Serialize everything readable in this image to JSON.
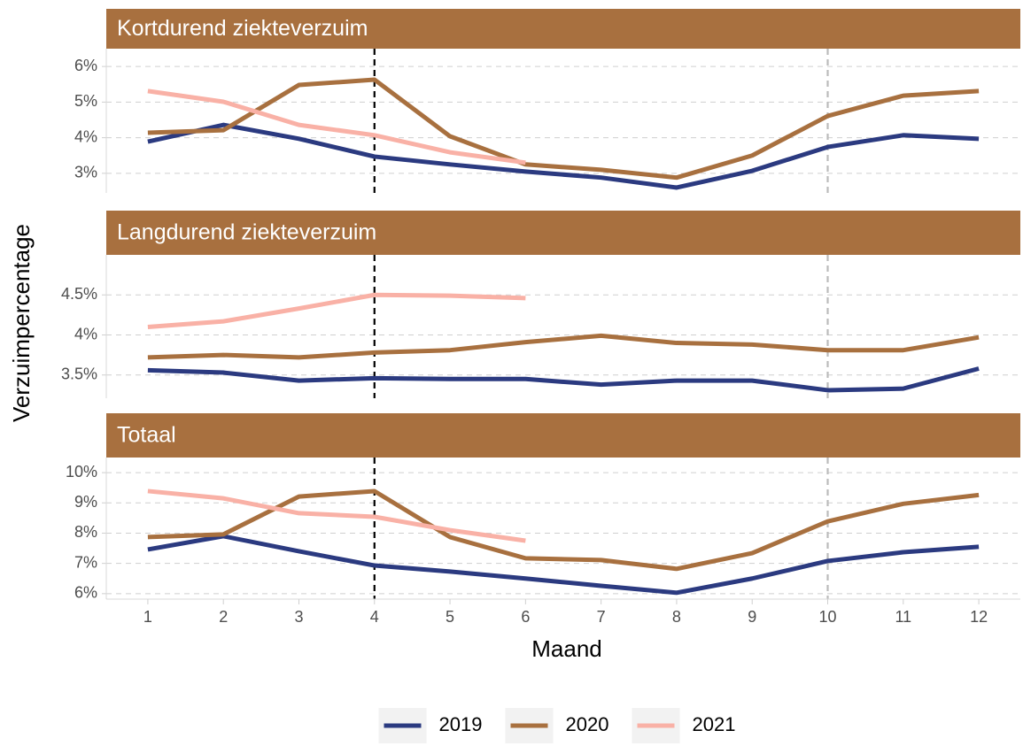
{
  "chart_data": {
    "type": "line",
    "xlabel": "Maand",
    "ylabel": "Verzuimpercentage",
    "x": [
      1,
      2,
      3,
      4,
      5,
      6,
      7,
      8,
      9,
      10,
      11,
      12
    ],
    "xlim": [
      0.45,
      12.55
    ],
    "xticks": [
      1,
      2,
      3,
      4,
      5,
      6,
      7,
      8,
      9,
      10,
      11,
      12
    ],
    "legend": "bottom",
    "grid": true,
    "series": [
      {
        "name": "2019",
        "color": "#2b3a80"
      },
      {
        "name": "2020",
        "color": "#a8703f"
      },
      {
        "name": "2021",
        "color": "#f9b1a6"
      }
    ],
    "vlines": [
      {
        "x": 4,
        "color": "#000000"
      },
      {
        "x": 10,
        "color": "#bbbbbb"
      }
    ],
    "facets": [
      {
        "title": "Kortdurend ziekteverzuim",
        "ylim": [
          2.45,
          6.5
        ],
        "yticks": [
          {
            "value": 3,
            "label": "3%"
          },
          {
            "value": 4,
            "label": "4%"
          },
          {
            "value": 5,
            "label": "5%"
          },
          {
            "value": 6,
            "label": "6%"
          }
        ],
        "values": [
          [
            3.89,
            4.36,
            3.97,
            3.47,
            3.25,
            3.05,
            2.88,
            2.6,
            3.07,
            3.74,
            4.07,
            3.97
          ],
          [
            4.14,
            4.21,
            5.48,
            5.63,
            4.04,
            3.25,
            3.1,
            2.88,
            3.5,
            4.61,
            5.18,
            5.31
          ],
          [
            5.31,
            5.01,
            4.36,
            4.07,
            3.59,
            3.3,
            null,
            null,
            null,
            null,
            null,
            null
          ]
        ]
      },
      {
        "title": "Langdurend ziekteverzuim",
        "ylim": [
          3.21,
          5.0
        ],
        "yticks": [
          {
            "value": 3.5,
            "label": "3.5%"
          },
          {
            "value": 4,
            "label": "4%"
          },
          {
            "value": 4.5,
            "label": "4.5%"
          }
        ],
        "values": [
          [
            3.56,
            3.53,
            3.43,
            3.46,
            3.45,
            3.45,
            3.38,
            3.43,
            3.43,
            3.31,
            3.33,
            3.58
          ],
          [
            3.72,
            3.75,
            3.72,
            3.78,
            3.81,
            3.91,
            3.99,
            3.9,
            3.88,
            3.81,
            3.81,
            3.97
          ],
          [
            4.1,
            4.17,
            4.33,
            4.5,
            4.49,
            4.46,
            null,
            null,
            null,
            null,
            null,
            null
          ]
        ]
      },
      {
        "title": "Totaal",
        "ylim": [
          5.82,
          10.5
        ],
        "yticks": [
          {
            "value": 6,
            "label": "6%"
          },
          {
            "value": 7,
            "label": "7%"
          },
          {
            "value": 8,
            "label": "8%"
          },
          {
            "value": 9,
            "label": "9%"
          },
          {
            "value": 10,
            "label": "10%"
          }
        ],
        "values": [
          [
            7.46,
            7.9,
            7.4,
            6.93,
            6.73,
            6.5,
            6.26,
            6.03,
            6.5,
            7.08,
            7.37,
            7.55
          ],
          [
            7.87,
            7.96,
            9.21,
            9.39,
            7.87,
            7.17,
            7.11,
            6.82,
            7.34,
            8.39,
            8.97,
            9.26
          ],
          [
            9.39,
            9.15,
            8.66,
            8.54,
            8.1,
            7.75,
            null,
            null,
            null,
            null,
            null,
            null
          ]
        ]
      }
    ]
  }
}
